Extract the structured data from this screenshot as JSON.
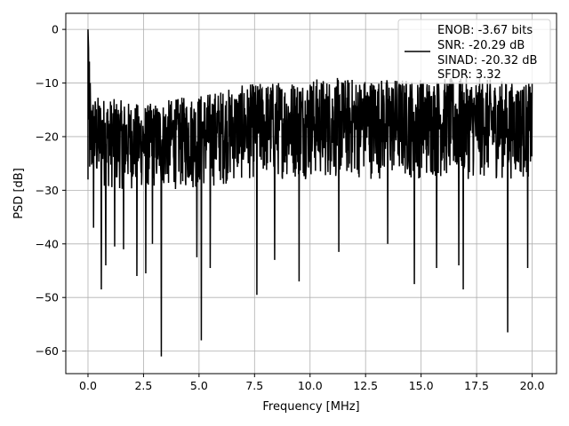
{
  "chart_data": {
    "type": "line",
    "xlabel": "Frequency [MHz]",
    "ylabel": "PSD [dB]",
    "xlim": [
      -1,
      21.1
    ],
    "ylim": [
      -64.2,
      3.0
    ],
    "grid": true,
    "x_ticks": [
      0.0,
      2.5,
      5.0,
      7.5,
      10.0,
      12.5,
      15.0,
      17.5,
      20.0
    ],
    "x_tick_labels": [
      "0.0",
      "2.5",
      "5.0",
      "7.5",
      "10.0",
      "12.5",
      "15.0",
      "17.5",
      "20.0"
    ],
    "y_ticks": [
      0,
      -10,
      -20,
      -30,
      -40,
      -50,
      -60
    ],
    "y_tick_labels": [
      "0",
      "−10",
      "−20",
      "−30",
      "−40",
      "−50",
      "−60"
    ],
    "legend": {
      "placement": "top-right",
      "lines": [
        "ENOB: -3.67 bits",
        "SNR: -20.29 dB",
        "SINAD: -20.32 dB",
        "SFDR: 3.32"
      ]
    },
    "series": [
      {
        "color": "#000000",
        "x_range": [
          0,
          20
        ],
        "point_count": 1600,
        "peaks": [
          {
            "x": 0.0,
            "y": 0.0
          },
          {
            "x": 0.03,
            "y": -3.5
          },
          {
            "x": 0.06,
            "y": -6.0
          },
          {
            "x": 0.1,
            "y": -10.0
          }
        ],
        "noise_band": [
          {
            "x": 0.0,
            "top": -12,
            "bottom": -30
          },
          {
            "x": 2.5,
            "top": -14,
            "bottom": -30
          },
          {
            "x": 5.0,
            "top": -12,
            "bottom": -30
          },
          {
            "x": 7.5,
            "top": -10,
            "bottom": -28
          },
          {
            "x": 10.0,
            "top": -9,
            "bottom": -28
          },
          {
            "x": 12.5,
            "top": -9,
            "bottom": -28
          },
          {
            "x": 15.0,
            "top": -9,
            "bottom": -28
          },
          {
            "x": 17.5,
            "top": -9,
            "bottom": -28
          },
          {
            "x": 20.0,
            "top": -10,
            "bottom": -28
          }
        ],
        "dips": [
          {
            "x": 0.25,
            "y": -37.0
          },
          {
            "x": 0.6,
            "y": -48.5
          },
          {
            "x": 0.8,
            "y": -44.0
          },
          {
            "x": 1.2,
            "y": -40.5
          },
          {
            "x": 1.6,
            "y": -41.0
          },
          {
            "x": 2.2,
            "y": -46.0
          },
          {
            "x": 2.6,
            "y": -45.5
          },
          {
            "x": 2.9,
            "y": -40.0
          },
          {
            "x": 3.3,
            "y": -61.0
          },
          {
            "x": 4.9,
            "y": -42.5
          },
          {
            "x": 5.1,
            "y": -58.0
          },
          {
            "x": 5.5,
            "y": -44.5
          },
          {
            "x": 7.6,
            "y": -49.5
          },
          {
            "x": 8.4,
            "y": -43.0
          },
          {
            "x": 9.5,
            "y": -47.0
          },
          {
            "x": 11.3,
            "y": -41.5
          },
          {
            "x": 13.5,
            "y": -40.0
          },
          {
            "x": 14.7,
            "y": -47.5
          },
          {
            "x": 15.7,
            "y": -44.5
          },
          {
            "x": 16.7,
            "y": -44.0
          },
          {
            "x": 16.9,
            "y": -48.5
          },
          {
            "x": 18.9,
            "y": -56.5
          },
          {
            "x": 19.8,
            "y": -44.5
          }
        ]
      }
    ]
  }
}
